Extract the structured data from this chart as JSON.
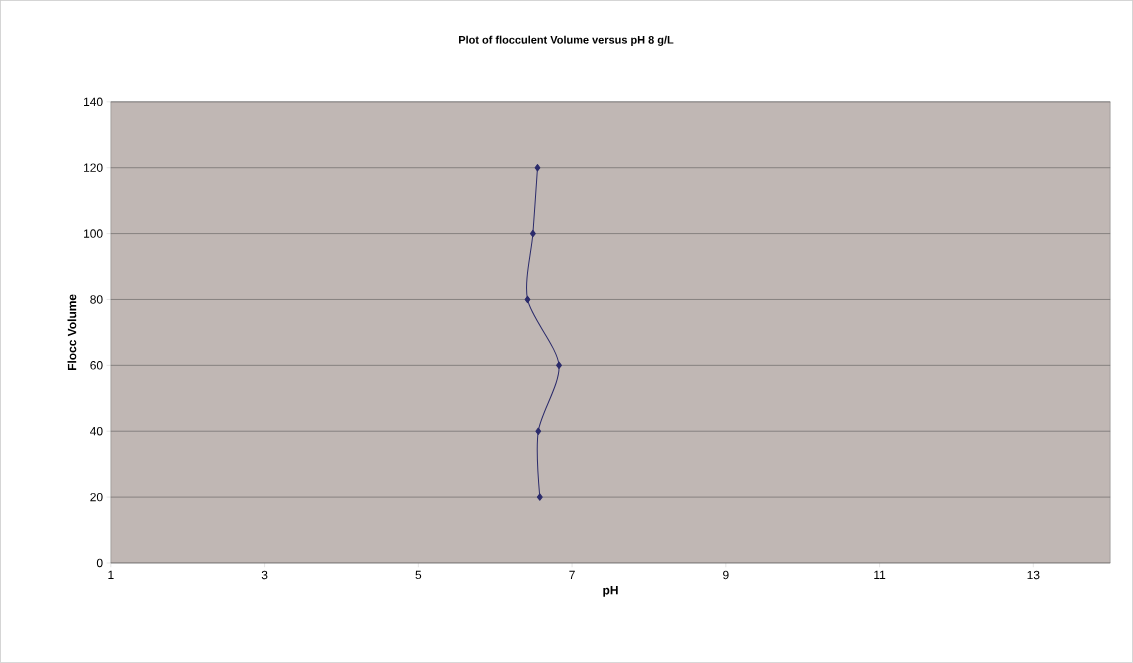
{
  "chart_data": {
    "type": "line",
    "title": "Plot of flocculent Volume versus pH 8 g/L",
    "xlabel": "pH",
    "ylabel": "Flocc Volume",
    "x": [
      6.58,
      6.56,
      6.83,
      6.42,
      6.49,
      6.55
    ],
    "values": [
      20,
      40,
      60,
      80,
      100,
      120
    ],
    "color": "#2b2b6b",
    "marker": "diamond",
    "line_style": "solid",
    "grid": "y",
    "xlim": [
      1,
      14
    ],
    "xticks": [
      1,
      3,
      5,
      7,
      9,
      11,
      13
    ],
    "ylim": [
      0,
      140
    ],
    "yticks": [
      0,
      20,
      40,
      60,
      80,
      100,
      120,
      140
    ]
  }
}
